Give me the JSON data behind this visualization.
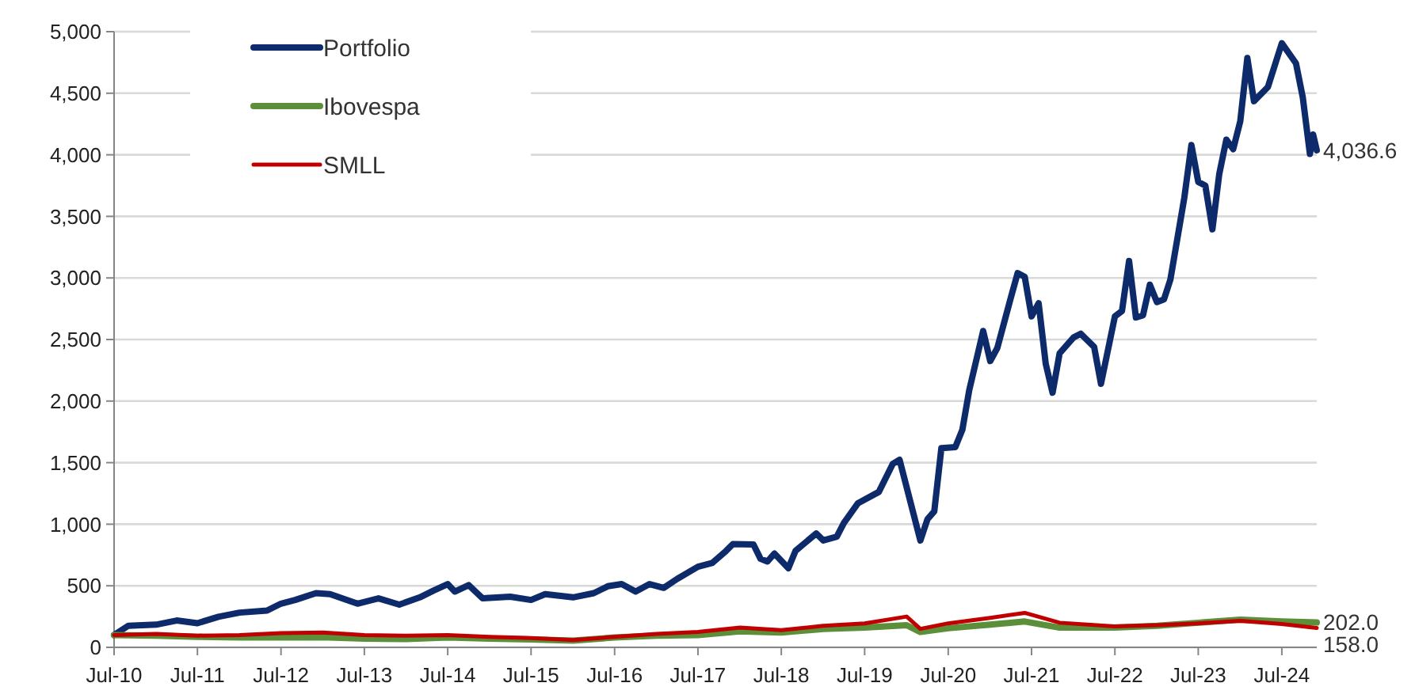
{
  "chart_data": {
    "type": "line",
    "legend": "top left",
    "grid": "y",
    "marker": "none",
    "line_style": "solid",
    "xlim": [
      "2010-07",
      "2024-12"
    ],
    "xticks": [
      {
        "value": "2010-07",
        "label": "Jul-10"
      },
      {
        "value": "2011-07",
        "label": "Jul-11"
      },
      {
        "value": "2012-07",
        "label": "Jul-12"
      },
      {
        "value": "2013-07",
        "label": "Jul-13"
      },
      {
        "value": "2014-07",
        "label": "Jul-14"
      },
      {
        "value": "2015-07",
        "label": "Jul-15"
      },
      {
        "value": "2016-07",
        "label": "Jul-16"
      },
      {
        "value": "2017-07",
        "label": "Jul-17"
      },
      {
        "value": "2018-07",
        "label": "Jul-18"
      },
      {
        "value": "2019-07",
        "label": "Jul-19"
      },
      {
        "value": "2020-07",
        "label": "Jul-20"
      },
      {
        "value": "2021-07",
        "label": "Jul-21"
      },
      {
        "value": "2022-07",
        "label": "Jul-22"
      },
      {
        "value": "2023-07",
        "label": "Jul-23"
      },
      {
        "value": "2024-07",
        "label": "Jul-24"
      }
    ],
    "ylim": [
      0,
      5000
    ],
    "yticks": [
      0,
      500,
      {
        "value": 1000,
        "label": "1,000"
      },
      {
        "value": 1500,
        "label": "1,500"
      },
      {
        "value": 2000,
        "label": "2,000"
      },
      {
        "value": 2500,
        "label": "2,500"
      },
      {
        "value": 3000,
        "label": "3,000"
      },
      {
        "value": 3500,
        "label": "3,500"
      },
      {
        "value": 4000,
        "label": "4,000"
      },
      {
        "value": 4500,
        "label": "4,500"
      },
      {
        "value": 5000,
        "label": "5,000"
      }
    ],
    "series": [
      {
        "name": "Portfolio",
        "color": "#0d2a6b",
        "x": [
          "2010-07",
          "2010-09",
          "2011-01",
          "2011-04",
          "2011-07",
          "2011-10",
          "2012-01",
          "2012-05",
          "2012-07",
          "2012-09",
          "2012-12",
          "2013-02",
          "2013-06",
          "2013-09",
          "2013-12",
          "2014-03",
          "2014-05",
          "2014-07",
          "2014-08",
          "2014-10",
          "2014-12",
          "2015-04",
          "2015-07",
          "2015-09",
          "2016-01",
          "2016-04",
          "2016-06",
          "2016-08",
          "2016-10",
          "2016-12",
          "2017-02",
          "2017-04",
          "2017-07",
          "2017-09",
          "2017-11",
          "2017-12",
          "2018-03",
          "2018-04",
          "2018-05",
          "2018-06",
          "2018-08",
          "2018-09",
          "2018-12",
          "2019-01",
          "2019-03",
          "2019-04",
          "2019-06",
          "2019-09",
          "2019-11",
          "2019-12",
          "2020-03",
          "2020-04",
          "2020-05",
          "2020-06",
          "2020-08",
          "2020-09",
          "2020-10",
          "2020-12",
          "2021-01",
          "2021-02",
          "2021-04",
          "2021-05",
          "2021-06",
          "2021-07",
          "2021-08",
          "2021-09",
          "2021-10",
          "2021-11",
          "2022-01",
          "2022-02",
          "2022-04",
          "2022-05",
          "2022-07",
          "2022-08",
          "2022-09",
          "2022-10",
          "2022-11",
          "2022-12",
          "2023-01",
          "2023-02",
          "2023-03",
          "2023-05",
          "2023-06",
          "2023-07",
          "2023-08",
          "2023-09",
          "2023-10",
          "2023-11",
          "2023-12",
          "2024-01",
          "2024-02",
          "2024-03",
          "2024-05",
          "2024-07",
          "2024-09",
          "2024-10",
          "2024-11",
          "2024-11-15",
          "2024-12"
        ],
        "values": [
          100,
          175,
          184,
          218,
          196,
          248,
          282,
          299,
          355,
          385,
          440,
          432,
          355,
          398,
          347,
          406,
          462,
          514,
          453,
          505,
          398,
          411,
          385,
          432,
          406,
          440,
          496,
          514,
          453,
          514,
          483,
          556,
          655,
          685,
          783,
          839,
          835,
          719,
          697,
          762,
          642,
          783,
          925,
          868,
          899,
          1010,
          1169,
          1262,
          1490,
          1523,
          868,
          1040,
          1105,
          1618,
          1626,
          1767,
          2088,
          2569,
          2325,
          2431,
          2838,
          3039,
          3009,
          2688,
          2795,
          2303,
          2068,
          2389,
          2517,
          2547,
          2440,
          2140,
          2688,
          2731,
          3138,
          2679,
          2697,
          2945,
          2804,
          2826,
          2987,
          3651,
          4079,
          3780,
          3750,
          3395,
          3844,
          4123,
          4046,
          4272,
          4786,
          4435,
          4550,
          4906,
          4743,
          4464,
          4007,
          4165,
          4036.6
        ]
      },
      {
        "name": "Ibovespa",
        "color": "#5b8f3a",
        "x": [
          "2010-07",
          "2011-01",
          "2011-07",
          "2012-01",
          "2012-07",
          "2013-01",
          "2013-07",
          "2014-01",
          "2014-07",
          "2015-01",
          "2015-07",
          "2016-01",
          "2016-07",
          "2017-01",
          "2017-07",
          "2018-01",
          "2018-07",
          "2019-01",
          "2019-07",
          "2020-01",
          "2020-03",
          "2020-07",
          "2021-01",
          "2021-06",
          "2021-11",
          "2022-07",
          "2023-01",
          "2023-07",
          "2024-01",
          "2024-07",
          "2024-12"
        ],
        "values": [
          100,
          95,
          85,
          80,
          80,
          82,
          70,
          68,
          80,
          70,
          65,
          55,
          80,
          95,
          100,
          130,
          120,
          150,
          160,
          180,
          125,
          155,
          185,
          210,
          160,
          160,
          175,
          200,
          225,
          210,
          202.0
        ]
      },
      {
        "name": "SMLL",
        "color": "#c00000",
        "x": [
          "2010-07",
          "2011-01",
          "2011-07",
          "2012-01",
          "2012-07",
          "2013-01",
          "2013-07",
          "2014-01",
          "2014-07",
          "2015-01",
          "2015-07",
          "2016-01",
          "2016-07",
          "2017-01",
          "2017-07",
          "2018-01",
          "2018-07",
          "2019-01",
          "2019-07",
          "2020-01",
          "2020-03",
          "2020-07",
          "2021-01",
          "2021-06",
          "2021-11",
          "2022-07",
          "2023-01",
          "2023-07",
          "2024-01",
          "2024-07",
          "2024-12"
        ],
        "values": [
          100,
          110,
          95,
          100,
          115,
          120,
          100,
          95,
          100,
          85,
          75,
          60,
          85,
          110,
          125,
          160,
          140,
          175,
          195,
          250,
          150,
          195,
          240,
          280,
          200,
          170,
          180,
          195,
          215,
          190,
          158.0
        ]
      }
    ],
    "annotations": [
      {
        "text": "4,036.6",
        "x": "2024-12",
        "y": 4036.6
      },
      {
        "text": "202.0",
        "x": "2024-12",
        "y": 202.0
      },
      {
        "text": "158.0",
        "x": "2024-12",
        "y": 158.0
      }
    ]
  }
}
